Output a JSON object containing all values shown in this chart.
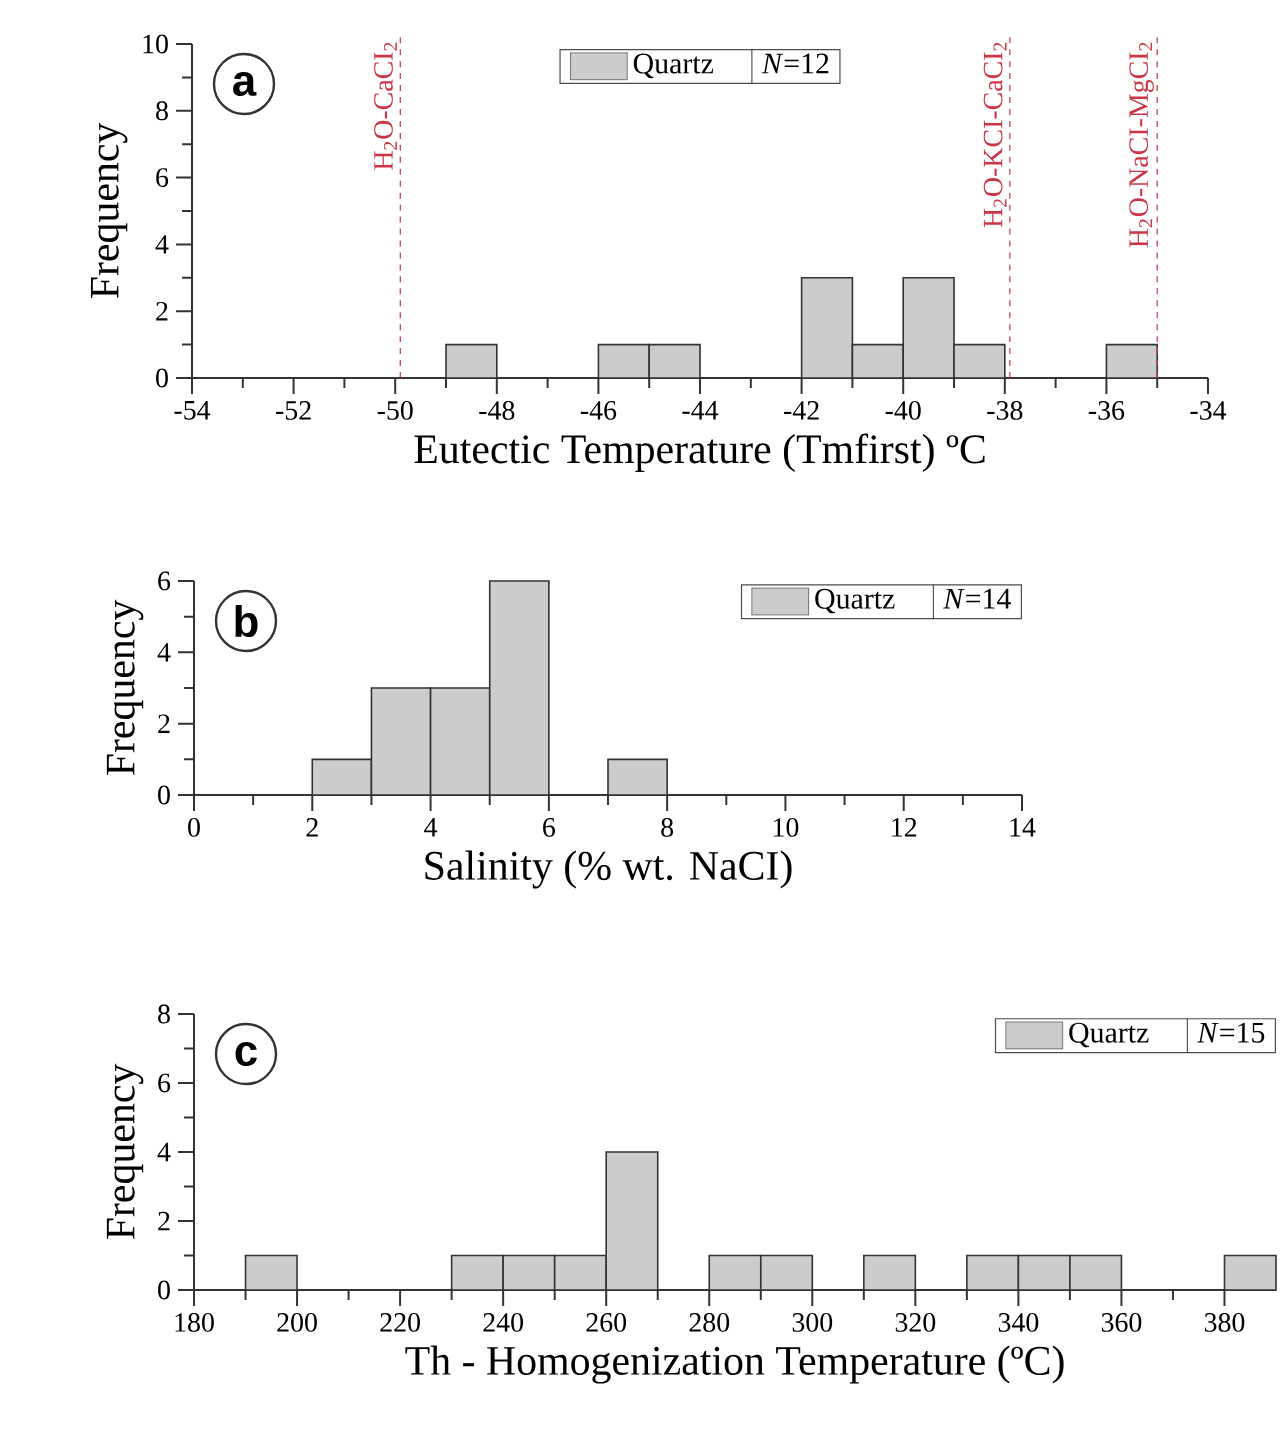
{
  "chart_data": [
    {
      "type": "histogram",
      "xlabel": "Eutectic Temperature (Tmfirst) ºC",
      "ylabel": "Frequency",
      "bins": [
        -54,
        -53,
        -52,
        -51,
        -50,
        -49,
        -48,
        -47,
        -46,
        -45,
        -44,
        -43,
        -42,
        -41,
        -40,
        -39,
        -38,
        -37,
        -36,
        -35,
        -34
      ],
      "series": [
        {
          "name": "Quartz",
          "color": "#cccccc",
          "values": [
            0,
            0,
            0,
            0,
            0,
            1,
            0,
            0,
            1,
            1,
            0,
            0,
            3,
            1,
            3,
            1,
            0,
            0,
            1,
            0
          ]
        }
      ],
      "xlim": [
        -54,
        -34
      ],
      "ylim": [
        0,
        10
      ],
      "xticks": [
        -54,
        {
          "value": -53,
          "label": null
        },
        -52,
        {
          "value": -51,
          "label": null
        },
        -50,
        {
          "value": -49,
          "label": null
        },
        -48,
        {
          "value": -47,
          "label": null
        },
        -46,
        {
          "value": -45,
          "label": null
        },
        -44,
        {
          "value": -43,
          "label": null
        },
        -42,
        {
          "value": -41,
          "label": null
        },
        -40,
        {
          "value": -39,
          "label": null
        },
        -38,
        {
          "value": -37,
          "label": null
        },
        -36,
        {
          "value": -35,
          "label": null
        },
        -34
      ],
      "yticks": [
        0,
        {
          "value": 1,
          "label": null
        },
        2,
        {
          "value": 3,
          "label": null
        },
        4,
        {
          "value": 5,
          "label": null
        },
        6,
        {
          "value": 7,
          "label": null
        },
        8,
        {
          "value": 9,
          "label": null
        },
        10
      ],
      "ref_lines": [
        {
          "axis": "x",
          "value": -49.9,
          "label": "H$_{2}$O-CaCI$_{2}$",
          "color": "#cc3344",
          "line_style": "dashed"
        },
        {
          "axis": "x",
          "value": -37.9,
          "label": "H$_{2}$O-KCI-CaCI$_{2}$",
          "color": "#cc3344",
          "line_style": "dashed"
        },
        {
          "axis": "x",
          "value": -35,
          "label": "H$_{2}$O-NaCI-MgCI$_{2}$",
          "color": "#cc3344",
          "line_style": "dashed"
        }
      ],
      "legend": "top",
      "annotations": [
        "a",
        "*N*=12"
      ]
    },
    {
      "type": "histogram",
      "xlabel": "Salinity (% wt. NaCI)",
      "ylabel": "Frequency",
      "bins": [
        0,
        1,
        2,
        3,
        4,
        5,
        6,
        7,
        8,
        9,
        10,
        11,
        12,
        13,
        14
      ],
      "series": [
        {
          "name": "Quartz",
          "color": "#cccccc",
          "values": [
            0,
            0,
            1,
            3,
            3,
            6,
            0,
            1,
            0,
            0,
            0,
            0,
            0,
            0
          ]
        }
      ],
      "xlim": [
        0,
        14
      ],
      "ylim": [
        0,
        6
      ],
      "xticks": [
        0,
        {
          "value": 1,
          "label": null
        },
        2,
        {
          "value": 3,
          "label": null
        },
        4,
        {
          "value": 5,
          "label": null
        },
        6,
        {
          "value": 7,
          "label": null
        },
        8,
        {
          "value": 9,
          "label": null
        },
        10,
        {
          "value": 11,
          "label": null
        },
        12,
        {
          "value": 13,
          "label": null
        },
        14
      ],
      "yticks": [
        0,
        {
          "value": 1,
          "label": null
        },
        2,
        {
          "value": 3,
          "label": null
        },
        4,
        {
          "value": 5,
          "label": null
        },
        6
      ],
      "legend": "top right",
      "annotations": [
        "b",
        "*N*=14"
      ]
    },
    {
      "type": "histogram",
      "xlabel": "Th - Homogenization Temperature (ºC)",
      "ylabel": "Frequency",
      "bins": [
        180,
        190,
        200,
        210,
        220,
        230,
        240,
        250,
        260,
        270,
        280,
        290,
        300,
        310,
        320,
        330,
        340,
        350,
        360,
        370,
        380,
        390
      ],
      "series": [
        {
          "name": "Quartz",
          "color": "#cccccc",
          "values": [
            0,
            1,
            0,
            0,
            0,
            1,
            1,
            1,
            4,
            0,
            1,
            1,
            0,
            1,
            0,
            1,
            1,
            1,
            0,
            0,
            1
          ]
        }
      ],
      "xlim": [
        180,
        390
      ],
      "ylim": [
        0,
        8
      ],
      "xticks": [
        180,
        {
          "value": 190,
          "label": null
        },
        200,
        {
          "value": 210,
          "label": null
        },
        220,
        {
          "value": 230,
          "label": null
        },
        240,
        {
          "value": 250,
          "label": null
        },
        260,
        {
          "value": 270,
          "label": null
        },
        280,
        {
          "value": 290,
          "label": null
        },
        300,
        {
          "value": 310,
          "label": null
        },
        320,
        {
          "value": 330,
          "label": null
        },
        340,
        {
          "value": 350,
          "label": null
        },
        360,
        {
          "value": 370,
          "label": null
        },
        380
      ],
      "yticks": [
        0,
        {
          "value": 1,
          "label": null
        },
        2,
        {
          "value": 3,
          "label": null
        },
        4,
        {
          "value": 5,
          "label": null
        },
        6,
        {
          "value": 7,
          "label": null
        },
        8
      ],
      "legend": "top right",
      "annotations": [
        "c",
        "*N*=15"
      ]
    }
  ]
}
